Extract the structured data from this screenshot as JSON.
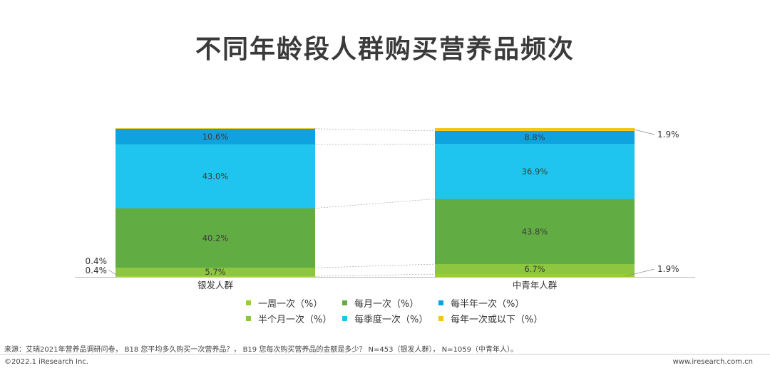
{
  "title": "不同年龄段人群购买营养品频次",
  "chart_data": {
    "type": "bar",
    "stacked": true,
    "percent_stacked": true,
    "categories": [
      "银发人群",
      "中青年人群"
    ],
    "series": [
      {
        "name": "一周一次（%）",
        "color": "#9ACD32",
        "values": [
          0.4,
          1.9
        ],
        "labels": [
          "",
          ""
        ]
      },
      {
        "name": "半个月一次（%）",
        "color": "#8DC63F",
        "values": [
          5.7,
          6.7
        ],
        "labels": [
          "5.7%",
          "6.7%"
        ]
      },
      {
        "name": "每月一次（%）",
        "color": "#62AD43",
        "values": [
          40.2,
          43.8
        ],
        "labels": [
          "40.2%",
          "43.8%"
        ]
      },
      {
        "name": "每季度一次（%）",
        "color": "#1FC5EF",
        "values": [
          43.0,
          36.9
        ],
        "labels": [
          "43.0%",
          "36.9%"
        ]
      },
      {
        "name": "每半年一次（%）",
        "color": "#0EA3DF",
        "values": [
          10.6,
          8.8
        ],
        "labels": [
          "10.6%",
          "8.8%"
        ]
      },
      {
        "name": "每年一次或以下（%）",
        "color": "#F5C518",
        "values": [
          0.4,
          1.9
        ],
        "labels": [
          "",
          ""
        ]
      }
    ],
    "outside_labels": {
      "left_top": "0.4%",
      "left_bottom": "0.4%",
      "right_top": "1.9%",
      "right_bottom": "1.9%"
    },
    "legend_order": [
      "一周一次（%）",
      "每月一次（%）",
      "每半年一次（%）",
      "半个月一次（%）",
      "每季度一次（%）",
      "每年一次或以下（%）"
    ],
    "legend_placement": "bottom"
  },
  "source": "来源：艾瑞2021年营养品调研问卷，  B18 您平均多久购买一次营养品？，  B19 您每次购买营养品的金额是多少？  N=453（银发人群），  N=1059（中青年人）。",
  "footer_left": "©2022.1 iResearch Inc.",
  "footer_right": "www.iresearch.com.cn"
}
